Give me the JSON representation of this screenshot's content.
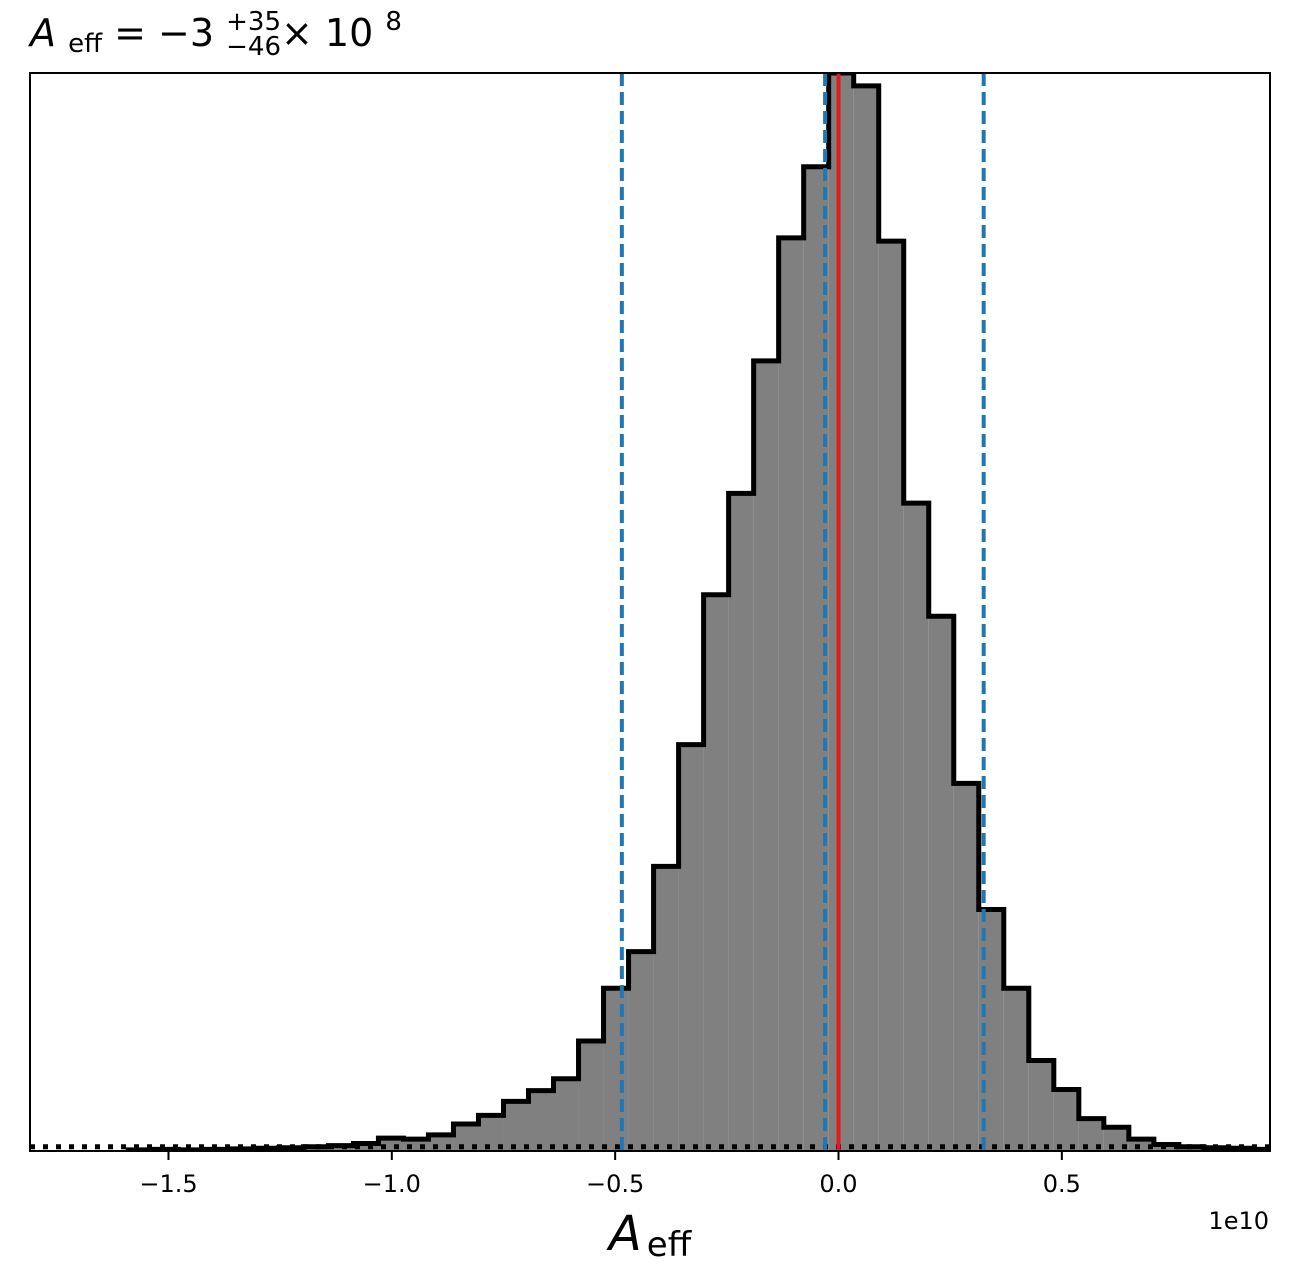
{
  "chart_data": {
    "type": "bar",
    "title": {
      "symbol": "A",
      "symbol_sub": "eff",
      "equals": " = −3",
      "sup": "+35",
      "sub": "−46",
      "times": " × 10",
      "exp": "8"
    },
    "xlabel": {
      "symbol": "A",
      "sub": "eff"
    },
    "x_offset_label": "1e10",
    "xlim": [
      -1.81,
      0.966
    ],
    "ylim": [
      0,
      1.0
    ],
    "xticks": [
      {
        "value": -1.5,
        "label": "−1.5"
      },
      {
        "value": -1.0,
        "label": "−1.0"
      },
      {
        "value": -0.5,
        "label": "−0.5"
      },
      {
        "value": 0.0,
        "label": "0.0"
      },
      {
        "value": 0.5,
        "label": "0.5"
      }
    ],
    "bin_width": 0.056,
    "bins": [
      {
        "x0": -1.59,
        "y": 0.001
      },
      {
        "x0": -1.534,
        "y": 0.0015
      },
      {
        "x0": -1.478,
        "y": 0.001
      },
      {
        "x0": -1.422,
        "y": 0.0015
      },
      {
        "x0": -1.366,
        "y": 0.002
      },
      {
        "x0": -1.31,
        "y": 0.0025
      },
      {
        "x0": -1.254,
        "y": 0.003
      },
      {
        "x0": -1.198,
        "y": 0.004
      },
      {
        "x0": -1.142,
        "y": 0.005
      },
      {
        "x0": -1.086,
        "y": 0.007
      },
      {
        "x0": -1.03,
        "y": 0.012
      },
      {
        "x0": -0.974,
        "y": 0.011
      },
      {
        "x0": -0.918,
        "y": 0.015
      },
      {
        "x0": -0.862,
        "y": 0.025
      },
      {
        "x0": -0.806,
        "y": 0.033
      },
      {
        "x0": -0.75,
        "y": 0.046
      },
      {
        "x0": -0.694,
        "y": 0.056
      },
      {
        "x0": -0.638,
        "y": 0.067
      },
      {
        "x0": -0.582,
        "y": 0.102
      },
      {
        "x0": -0.526,
        "y": 0.151
      },
      {
        "x0": -0.47,
        "y": 0.185
      },
      {
        "x0": -0.414,
        "y": 0.264
      },
      {
        "x0": -0.358,
        "y": 0.377
      },
      {
        "x0": -0.302,
        "y": 0.516
      },
      {
        "x0": -0.246,
        "y": 0.61
      },
      {
        "x0": -0.19,
        "y": 0.733
      },
      {
        "x0": -0.134,
        "y": 0.847
      },
      {
        "x0": -0.078,
        "y": 0.913
      },
      {
        "x0": -0.022,
        "y": 1.0
      },
      {
        "x0": 0.034,
        "y": 0.988
      },
      {
        "x0": 0.09,
        "y": 0.844
      },
      {
        "x0": 0.146,
        "y": 0.601
      },
      {
        "x0": 0.202,
        "y": 0.496
      },
      {
        "x0": 0.258,
        "y": 0.341
      },
      {
        "x0": 0.314,
        "y": 0.224
      },
      {
        "x0": 0.37,
        "y": 0.151
      },
      {
        "x0": 0.426,
        "y": 0.084
      },
      {
        "x0": 0.482,
        "y": 0.057
      },
      {
        "x0": 0.538,
        "y": 0.03
      },
      {
        "x0": 0.594,
        "y": 0.022
      },
      {
        "x0": 0.65,
        "y": 0.011
      },
      {
        "x0": 0.706,
        "y": 0.006
      },
      {
        "x0": 0.762,
        "y": 0.004
      },
      {
        "x0": 0.818,
        "y": 0.003
      },
      {
        "x0": 0.874,
        "y": 0.0025
      },
      {
        "x0": 0.93,
        "y": 0.0015
      }
    ],
    "vlines": [
      {
        "x": -0.485,
        "style": "dashed",
        "color": "#1f77b4"
      },
      {
        "x": -0.03,
        "style": "dashed",
        "color": "#1f77b4"
      },
      {
        "x": 0.325,
        "style": "dashed",
        "color": "#1f77b4"
      },
      {
        "x": 0.0,
        "style": "solid",
        "color": "#e31a1c"
      }
    ],
    "baseline": {
      "y": 0.004,
      "style": "dotted",
      "color": "#000000"
    },
    "fill_color": "#808080",
    "edge_color": "#000000",
    "grid": false
  }
}
